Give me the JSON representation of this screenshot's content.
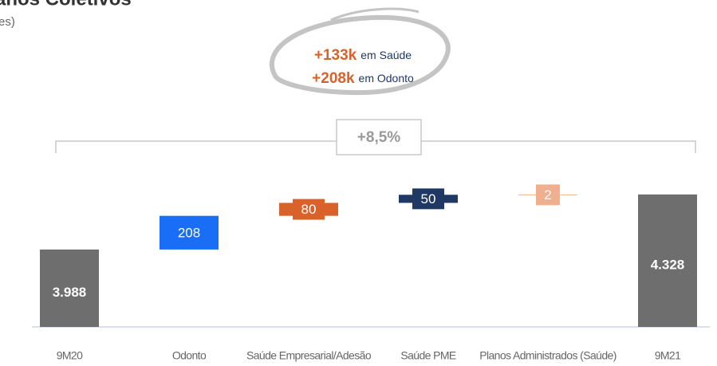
{
  "chart_data": {
    "type": "waterfall",
    "title": "anos Coletivos",
    "subtitle": "es)",
    "categories": [
      "9M20",
      "Odonto",
      "Saúde Empresarial/Adesão",
      "Saúde PME",
      "Planos Administrados (Saúde)",
      "9M21"
    ],
    "measure": [
      "absolute",
      "relative",
      "relative",
      "relative",
      "relative",
      "total"
    ],
    "values": [
      3988,
      208,
      80,
      50,
      2,
      4328
    ],
    "value_labels": [
      "3.988",
      "208",
      "80",
      "50",
      "2",
      "4.328"
    ],
    "colors": [
      "#6e6e6e",
      "#1a6ef5",
      "#d9622b",
      "#1f3864",
      "#f0b090",
      "#6e6e6e"
    ],
    "ylim": [
      3510,
      4800
    ],
    "annotations": [
      {
        "value": "+133k",
        "text": "em Saúde"
      },
      {
        "value": "+208k",
        "text": "em Odonto"
      }
    ],
    "bracket_label": "+8,5%"
  }
}
